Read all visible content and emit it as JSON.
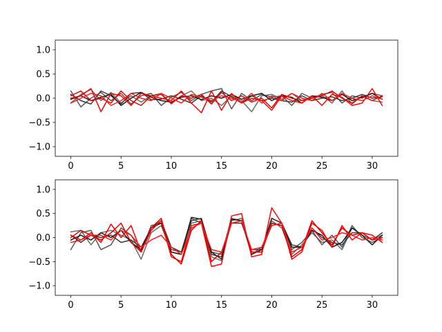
{
  "chart_data": [
    {
      "type": "line",
      "title": "",
      "xlabel": "",
      "ylabel": "",
      "xlim": [
        -1.55,
        32.55
      ],
      "ylim": [
        -1.2,
        1.2
      ],
      "xticks": [
        0,
        5,
        10,
        15,
        20,
        25,
        30
      ],
      "yticks": [
        -1.0,
        -0.5,
        0.0,
        0.5,
        1.0
      ],
      "xtick_labels": [
        "0",
        "5",
        "10",
        "15",
        "20",
        "25",
        "30"
      ],
      "ytick_labels": [
        "−1.0",
        "−0.5",
        "0.0",
        "0.5",
        "1.0"
      ],
      "grid": false,
      "x": [
        0,
        1,
        2,
        3,
        4,
        5,
        6,
        7,
        8,
        9,
        10,
        11,
        12,
        13,
        14,
        15,
        16,
        17,
        18,
        19,
        20,
        21,
        22,
        23,
        24,
        25,
        26,
        27,
        28,
        29,
        30,
        31
      ],
      "series": [
        {
          "color": "#555555",
          "values": [
            0.15,
            -0.18,
            0.0,
            0.12,
            -0.05,
            0.1,
            -0.12,
            0.05,
            0.1,
            -0.15,
            0.02,
            0.12,
            -0.05,
            0.08,
            0.15,
            0.2,
            -0.22,
            0.1,
            -0.05,
            0.08,
            0.02,
            0.05,
            -0.15,
            0.1,
            0.0,
            0.08,
            0.12,
            -0.1,
            0.05,
            0.0,
            0.1,
            0.05
          ]
        },
        {
          "color": "#6a6a6a",
          "values": [
            -0.1,
            0.08,
            0.18,
            -0.05,
            0.12,
            -0.1,
            0.05,
            -0.08,
            0.05,
            0.1,
            -0.12,
            0.05,
            0.15,
            -0.05,
            0.0,
            -0.15,
            0.05,
            -0.05,
            -0.28,
            0.05,
            0.08,
            -0.02,
            0.1,
            -0.05,
            0.03,
            0.06,
            -0.1,
            0.15,
            -0.12,
            0.05,
            -0.05,
            -0.08
          ]
        },
        {
          "color": "#3a3a3a",
          "values": [
            0.08,
            -0.05,
            -0.12,
            0.15,
            0.05,
            -0.12,
            0.1,
            0.12,
            -0.03,
            -0.02,
            0.05,
            -0.02,
            -0.1,
            0.05,
            -0.08,
            0.15,
            0.03,
            -0.1,
            0.05,
            -0.05,
            0.0,
            -0.05,
            -0.08,
            0.05,
            -0.05,
            0.0,
            0.03,
            -0.05,
            0.0,
            0.08,
            0.0,
            0.03
          ]
        },
        {
          "color": "#1a1a1a",
          "values": [
            -0.02,
            0.05,
            -0.05,
            0.02,
            0.08,
            -0.15,
            0.0,
            0.12,
            0.02,
            -0.05,
            -0.08,
            0.02,
            0.05,
            -0.03,
            0.05,
            0.0,
            0.08,
            -0.02,
            0.05,
            0.1,
            -0.05,
            0.05,
            0.02,
            -0.1,
            0.05,
            0.02,
            -0.05,
            0.08,
            -0.05,
            0.02,
            0.1,
            -0.02
          ]
        },
        {
          "color": "#ff0000",
          "values": [
            0.0,
            0.05,
            0.2,
            -0.28,
            0.1,
            0.05,
            -0.15,
            0.1,
            0.05,
            0.0,
            -0.05,
            0.15,
            -0.1,
            -0.3,
            0.15,
            -0.25,
            0.1,
            -0.1,
            0.0,
            -0.05,
            -0.25,
            0.05,
            -0.05,
            -0.1,
            0.05,
            -0.15,
            0.08,
            0.02,
            -0.15,
            -0.1,
            0.2,
            -0.15
          ]
        },
        {
          "color": "#e60000",
          "values": [
            0.05,
            0.15,
            -0.05,
            0.0,
            -0.1,
            0.15,
            -0.05,
            -0.15,
            0.05,
            0.08,
            -0.1,
            0.05,
            0.0,
            0.08,
            -0.12,
            0.12,
            -0.05,
            0.05,
            -0.08,
            0.0,
            -0.2,
            0.08,
            0.0,
            -0.05,
            0.0,
            0.05,
            0.15,
            0.0,
            -0.1,
            0.05,
            -0.05,
            0.05
          ]
        },
        {
          "color": "#ff1a1a",
          "values": [
            -0.1,
            0.0,
            0.1,
            0.05,
            -0.15,
            -0.05,
            0.1,
            0.0,
            -0.05,
            0.1,
            0.0,
            -0.1,
            0.08,
            0.02,
            -0.05,
            0.05,
            0.0,
            -0.08,
            0.1,
            -0.1,
            0.05,
            -0.05,
            0.1,
            0.0,
            -0.05,
            0.1,
            -0.05,
            0.1,
            0.0,
            -0.05,
            0.05,
            -0.02
          ]
        }
      ]
    },
    {
      "type": "line",
      "title": "",
      "xlabel": "",
      "ylabel": "",
      "xlim": [
        -1.55,
        32.55
      ],
      "ylim": [
        -1.2,
        1.2
      ],
      "xticks": [
        0,
        5,
        10,
        15,
        20,
        25,
        30
      ],
      "yticks": [
        -1.0,
        -0.5,
        0.0,
        0.5,
        1.0
      ],
      "xtick_labels": [
        "0",
        "5",
        "10",
        "15",
        "20",
        "25",
        "30"
      ],
      "ytick_labels": [
        "−1.0",
        "−0.5",
        "0.0",
        "0.5",
        "1.0"
      ],
      "grid": false,
      "x": [
        0,
        1,
        2,
        3,
        4,
        5,
        6,
        7,
        8,
        9,
        10,
        11,
        12,
        13,
        14,
        15,
        16,
        17,
        18,
        19,
        20,
        21,
        22,
        23,
        24,
        25,
        26,
        27,
        28,
        29,
        30,
        31
      ],
      "series": [
        {
          "color": "#6a6a6a",
          "values": [
            0.12,
            0.15,
            -0.15,
            0.1,
            0.15,
            0.05,
            -0.05,
            -0.45,
            0.1,
            0.25,
            -0.3,
            -0.35,
            0.3,
            0.35,
            -0.4,
            -0.48,
            0.35,
            0.4,
            -0.3,
            -0.3,
            0.35,
            0.2,
            -0.35,
            -0.15,
            0.1,
            -0.1,
            -0.05,
            -0.25,
            0.2,
            0.05,
            -0.05,
            0.05
          ]
        },
        {
          "color": "#555555",
          "values": [
            -0.25,
            0.1,
            0.15,
            -0.25,
            -0.15,
            0.2,
            0.05,
            -0.3,
            0.25,
            0.3,
            -0.25,
            -0.3,
            0.4,
            0.3,
            -0.3,
            -0.35,
            0.4,
            0.35,
            -0.35,
            -0.2,
            0.3,
            0.25,
            -0.25,
            -0.1,
            0.15,
            -0.15,
            0.05,
            -0.2,
            0.25,
            0.0,
            -0.1,
            0.0
          ]
        },
        {
          "color": "#3a3a3a",
          "values": [
            0.05,
            -0.1,
            0.05,
            0.0,
            0.05,
            -0.1,
            -0.05,
            -0.2,
            0.2,
            0.35,
            -0.2,
            -0.3,
            0.35,
            0.4,
            -0.35,
            -0.4,
            0.3,
            0.3,
            -0.25,
            -0.25,
            0.25,
            0.3,
            -0.15,
            -0.2,
            0.2,
            0.0,
            -0.1,
            -0.15,
            0.1,
            0.1,
            -0.05,
            0.1
          ]
        },
        {
          "color": "#1a1a1a",
          "values": [
            -0.05,
            0.05,
            -0.05,
            0.1,
            0.0,
            0.15,
            -0.1,
            -0.25,
            0.2,
            0.3,
            -0.3,
            -0.35,
            0.42,
            0.38,
            -0.3,
            -0.45,
            0.38,
            0.35,
            -0.35,
            -0.25,
            0.4,
            0.3,
            -0.2,
            -0.2,
            0.15,
            0.05,
            -0.2,
            -0.1,
            0.2,
            0.05,
            -0.15,
            0.05
          ]
        },
        {
          "color": "#ff0000",
          "values": [
            0.05,
            -0.05,
            0.1,
            -0.1,
            0.28,
            0.0,
            0.25,
            -0.3,
            0.15,
            0.35,
            -0.4,
            -0.5,
            0.25,
            0.3,
            -0.6,
            -0.55,
            0.45,
            0.5,
            -0.4,
            -0.35,
            0.62,
            0.3,
            -0.45,
            -0.3,
            0.3,
            0.15,
            -0.2,
            0.25,
            -0.05,
            0.1,
            0.05,
            -0.1
          ]
        },
        {
          "color": "#e60000",
          "values": [
            0.0,
            0.15,
            0.05,
            -0.05,
            0.1,
            0.3,
            -0.1,
            -0.3,
            0.2,
            0.4,
            -0.35,
            -0.55,
            0.15,
            0.35,
            -0.5,
            -0.3,
            0.3,
            0.35,
            -0.3,
            -0.3,
            0.3,
            0.25,
            -0.4,
            -0.25,
            0.35,
            0.1,
            -0.15,
            0.2,
            0.05,
            0.1,
            -0.05,
            0.0
          ]
        },
        {
          "color": "#ff1a1a",
          "values": [
            -0.1,
            -0.05,
            0.05,
            0.05,
            -0.05,
            0.15,
            0.05,
            -0.2,
            -0.05,
            0.05,
            -0.2,
            -0.35,
            0.2,
            0.3,
            -0.25,
            -0.3,
            0.3,
            0.35,
            -0.25,
            -0.2,
            0.25,
            0.3,
            -0.3,
            -0.2,
            0.2,
            -0.05,
            0.0,
            0.1,
            0.05,
            -0.05,
            0.0,
            -0.05
          ]
        }
      ]
    }
  ]
}
